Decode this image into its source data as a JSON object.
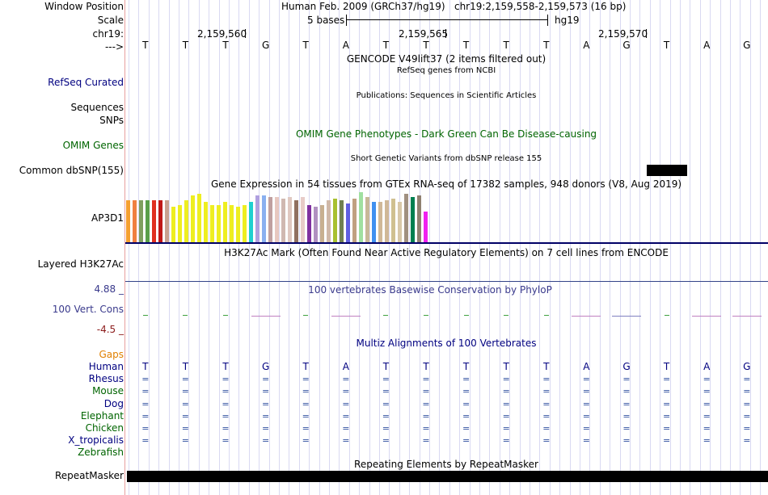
{
  "header": {
    "window_position_label": "Window Position",
    "scale_label": "Scale",
    "chr_label": "chr19:",
    "strand_label": "--->",
    "assembly_text": "Human Feb. 2009 (GRCh37/hg19)",
    "position_text": "chr19:2,159,558-2,159,573 (16 bp)",
    "scale_text": "5 bases",
    "scale_db": "hg19",
    "coord_labels": [
      "2,159,560",
      "2,159,565",
      "2,159,570"
    ]
  },
  "bases": [
    "T",
    "T",
    "T",
    "G",
    "T",
    "A",
    "T",
    "T",
    "T",
    "T",
    "T",
    "A",
    "G",
    "T",
    "A",
    "G"
  ],
  "tracks": {
    "gencode_title": "GENCODE V49lift37 (2 items filtered out)",
    "refseq_label": "RefSeq Curated",
    "refseq_title": "RefSeq genes from NCBI",
    "sequences_label": "Sequences",
    "publications_title": "Publications: Sequences in Scientific Articles",
    "snps_label": "SNPs",
    "omim_title": "OMIM Gene Phenotypes - Dark Green Can Be Disease-causing",
    "omim_label": "OMIM Genes",
    "dbsnp_title": "Short Genetic Variants from dbSNP release 155",
    "dbsnp_label": "Common dbSNP(155)",
    "gtex_title": "Gene Expression in 54 tissues from GTEx RNA-seq of 17382 samples, 948 donors (V8, Aug 2019)",
    "gtex_label": "AP3D1",
    "h3k27ac_title": "H3K27Ac Mark (Often Found Near Active Regulatory Elements) on 7 cell lines from ENCODE",
    "h3k27ac_label": "Layered H3K27Ac",
    "phylop_max": "4.88 _",
    "phylop_title": "100 vertebrates Basewise Conservation by PhyloP",
    "phylop_label": "100 Vert. Cons",
    "phylop_min": "-4.5 _",
    "multiz_title": "Multiz Alignments of 100 Vertebrates",
    "gaps_label": "Gaps",
    "species": [
      "Human",
      "Rhesus",
      "Mouse",
      "Dog",
      "Elephant",
      "Chicken",
      "X_tropicalis",
      "Zebrafish"
    ],
    "match_symbol": "=",
    "repeat_title": "Repeating Elements by RepeatMasker",
    "repeat_label": "RepeatMasker"
  },
  "gtex_bars": [
    {
      "value": 52,
      "color": "#f5a030"
    },
    {
      "value": 52,
      "color": "#f08040"
    },
    {
      "value": 52,
      "color": "#7f9f5f"
    },
    {
      "value": 52,
      "color": "#5a9f4a"
    },
    {
      "value": 52,
      "color": "#e03020"
    },
    {
      "value": 52,
      "color": "#c01818"
    },
    {
      "value": 52,
      "color": "#c8a090"
    },
    {
      "value": 44,
      "color": "#eeee20"
    },
    {
      "value": 46,
      "color": "#eeee20"
    },
    {
      "value": 52,
      "color": "#eeee20"
    },
    {
      "value": 58,
      "color": "#eeee20"
    },
    {
      "value": 60,
      "color": "#eeee20"
    },
    {
      "value": 50,
      "color": "#eeee20"
    },
    {
      "value": 46,
      "color": "#eeee20"
    },
    {
      "value": 46,
      "color": "#eeee20"
    },
    {
      "value": 50,
      "color": "#eeee20"
    },
    {
      "value": 46,
      "color": "#eeee20"
    },
    {
      "value": 44,
      "color": "#eeee20"
    },
    {
      "value": 46,
      "color": "#eeee20"
    },
    {
      "value": 50,
      "color": "#20d0d0"
    },
    {
      "value": 58,
      "color": "#b0a0e0"
    },
    {
      "value": 58,
      "color": "#8ab0f0"
    },
    {
      "value": 56,
      "color": "#c0a0a0"
    },
    {
      "value": 56,
      "color": "#e8c8c0"
    },
    {
      "value": 54,
      "color": "#d0b8b0"
    },
    {
      "value": 56,
      "color": "#e0c8c0"
    },
    {
      "value": 52,
      "color": "#907060"
    },
    {
      "value": 56,
      "color": "#e8ccc8"
    },
    {
      "value": 46,
      "color": "#8030a0"
    },
    {
      "value": 44,
      "color": "#b090c0"
    },
    {
      "value": 46,
      "color": "#c8b090"
    },
    {
      "value": 52,
      "color": "#d0b8a8"
    },
    {
      "value": 54,
      "color": "#a8c030"
    },
    {
      "value": 52,
      "color": "#708050"
    },
    {
      "value": 48,
      "color": "#6060e0"
    },
    {
      "value": 54,
      "color": "#c0a080"
    },
    {
      "value": 62,
      "color": "#a0e0a0"
    },
    {
      "value": 56,
      "color": "#c8b898"
    },
    {
      "value": 50,
      "color": "#4090f0"
    },
    {
      "value": 50,
      "color": "#d0b898"
    },
    {
      "value": 52,
      "color": "#d0b898"
    },
    {
      "value": 54,
      "color": "#d0c090"
    },
    {
      "value": 50,
      "color": "#d8c8a8"
    },
    {
      "value": 60,
      "color": "#a09080"
    },
    {
      "value": 56,
      "color": "#008050"
    },
    {
      "value": 58,
      "color": "#8f8070"
    },
    {
      "value": 38,
      "color": "#f020f0"
    }
  ],
  "conservation_marks": [
    {
      "base": 0,
      "value": 0.2,
      "color": "#40a040"
    },
    {
      "base": 1,
      "value": 0.2,
      "color": "#40a040"
    },
    {
      "base": 2,
      "value": 0.2,
      "color": "#40a040"
    },
    {
      "base": 3,
      "value": -0.2,
      "color": "#c080c0"
    },
    {
      "base": 4,
      "value": 0.2,
      "color": "#40a040"
    },
    {
      "base": 5,
      "value": -0.2,
      "color": "#c080c0"
    },
    {
      "base": 6,
      "value": 0.2,
      "color": "#40a040"
    },
    {
      "base": 7,
      "value": 0.2,
      "color": "#40a040"
    },
    {
      "base": 8,
      "value": 0.2,
      "color": "#40a040"
    },
    {
      "base": 9,
      "value": 0.2,
      "color": "#40a040"
    },
    {
      "base": 10,
      "value": 0.2,
      "color": "#40a040"
    },
    {
      "base": 11,
      "value": -0.2,
      "color": "#c080c0"
    },
    {
      "base": 12,
      "value": -0.2,
      "color": "#8080c0"
    },
    {
      "base": 13,
      "value": 0.2,
      "color": "#40a040"
    },
    {
      "base": 14,
      "value": -0.2,
      "color": "#c080c0"
    },
    {
      "base": 15,
      "value": -0.2,
      "color": "#c080c0"
    }
  ],
  "colors": {
    "navy": "#000080",
    "dark_green": "#006400",
    "gaps_orange": "#e08000",
    "phylop_blue": "#3a3a8c",
    "phylop_min_red": "#8b1a1a",
    "alignment_blue": "#3050a0",
    "track_black": "#000000"
  }
}
